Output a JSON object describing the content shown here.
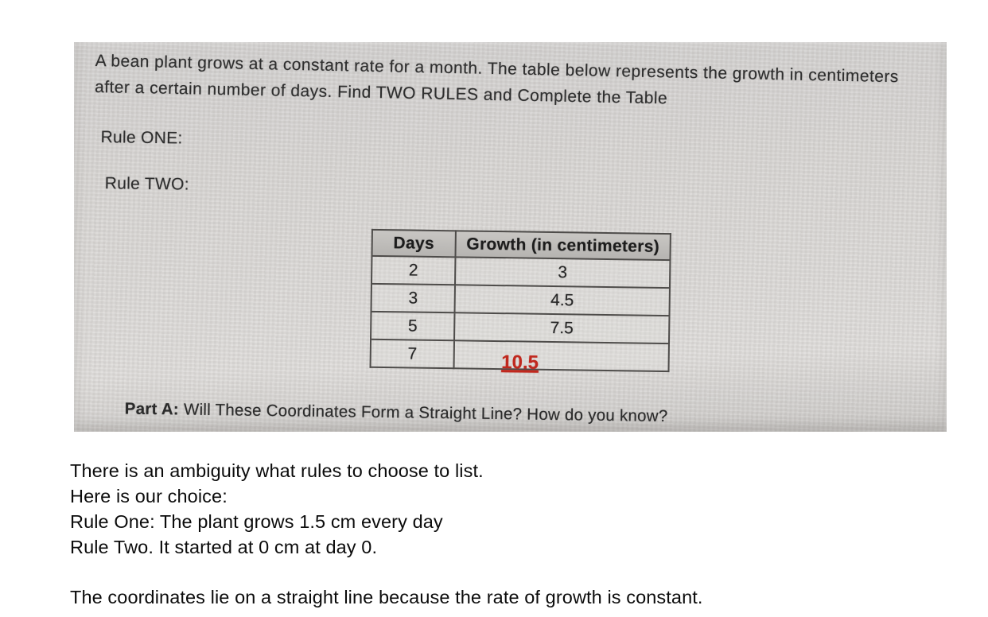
{
  "worksheet": {
    "intro_line1": "A bean plant grows at a constant rate for a month. The table below represents the growth in centimeters",
    "intro_line2": "after a certain number of days. Find TWO RULES and Complete the Table",
    "rule_one_label": "Rule ONE:",
    "rule_two_label": "Rule TWO:",
    "table": {
      "headers": [
        "Days",
        "Growth (in centimeters)"
      ],
      "rows": [
        {
          "days": "2",
          "growth": "3"
        },
        {
          "days": "3",
          "growth": "4.5"
        },
        {
          "days": "5",
          "growth": "7.5"
        },
        {
          "days": "7",
          "growth": "10.5"
        }
      ],
      "filled_in_value": "10.5",
      "filled_in_color": "#c0281e"
    },
    "part_a_label": "Part A:",
    "part_a_question": "Will These Coordinates Form a Straight Line? How do you know?"
  },
  "answer": {
    "lines": [
      "There is an ambiguity what rules to choose to list.",
      "Here is our choice:",
      "Rule One: The plant grows 1.5 cm every day",
      "Rule Two. It started at 0 cm at day 0."
    ],
    "conclusion": "The coordinates lie on a straight line because the rate of growth is constant."
  }
}
